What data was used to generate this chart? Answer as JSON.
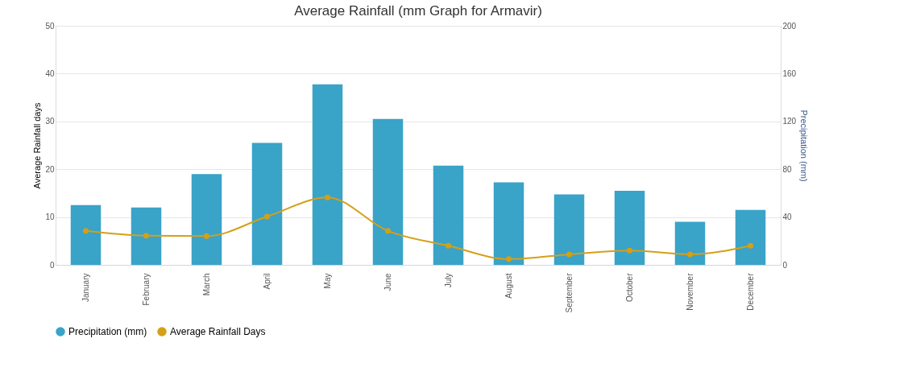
{
  "chart_data": {
    "type": "bar",
    "title": "Average Rainfall (mm Graph for Armavir)",
    "ylabel": "Average Rainfall days",
    "y2label": "Precipitation (mm)",
    "categories": [
      "January",
      "February",
      "March",
      "April",
      "May",
      "June",
      "July",
      "August",
      "September",
      "October",
      "November",
      "December"
    ],
    "series": [
      {
        "name": "Precipitation (mm)",
        "axis": "y2",
        "color": "#3aa3c8",
        "values": [
          50,
          48,
          76,
          102,
          151,
          122,
          83,
          69,
          59,
          62,
          36,
          46
        ]
      },
      {
        "name": "Average Rainfall Days",
        "type": "line",
        "color": "#d4a017",
        "values": [
          7.1,
          6.1,
          6,
          10.1,
          14.1,
          7.1,
          4,
          1.2,
          2.2,
          3,
          2.2,
          4
        ]
      }
    ],
    "ylim": [
      0,
      50
    ],
    "yticks": [
      0,
      10,
      20,
      30,
      40,
      50
    ],
    "y2lim": [
      0,
      200
    ],
    "y2ticks": [
      0,
      40,
      80,
      120,
      160,
      200
    ],
    "grid": "y",
    "legend": "bottom",
    "marker": "circle",
    "line_style": "solid"
  }
}
